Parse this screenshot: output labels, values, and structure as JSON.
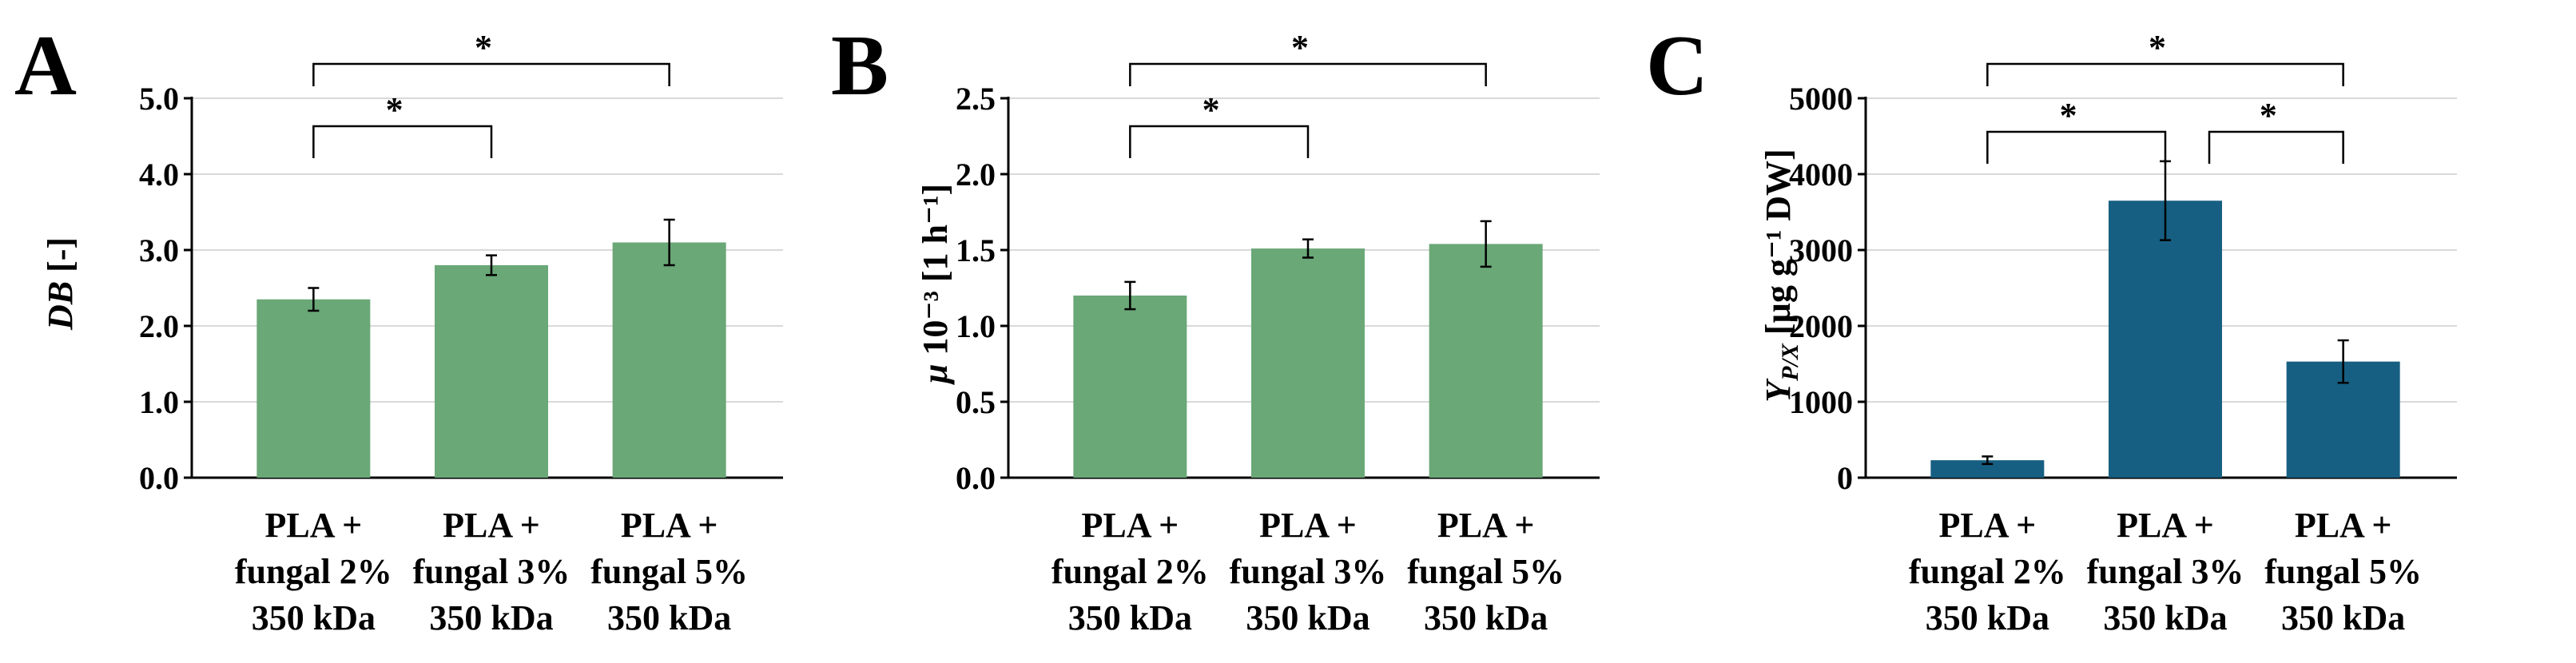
{
  "colors": {
    "green": "#6aa877",
    "blue": "#175f82",
    "axis": "#000000",
    "grid": "#d9d9d9"
  },
  "chart_data": [
    {
      "type": "bar",
      "panel": "A",
      "categories": [
        [
          "PLA +",
          "fungal 2%",
          "350 kDa"
        ],
        [
          "PLA +",
          "fungal 3%",
          "350 kDa"
        ],
        [
          "PLA +",
          "fungal 5%",
          "350 kDa"
        ]
      ],
      "values": [
        2.35,
        2.8,
        3.1
      ],
      "errors": [
        0.15,
        0.13,
        0.3
      ],
      "ylabel_main": "DB",
      "ylabel_rest": " [-]",
      "ylim": [
        0,
        5
      ],
      "yticks": [
        "0.0",
        "1.0",
        "2.0",
        "3.0",
        "4.0",
        "5.0"
      ],
      "grid": true,
      "color": "#6aa877",
      "significance": [
        {
          "from": 0,
          "to": 1,
          "label": "*",
          "level": 1
        },
        {
          "from": 0,
          "to": 2,
          "label": "*",
          "level": 2
        }
      ]
    },
    {
      "type": "bar",
      "panel": "B",
      "categories": [
        [
          "PLA +",
          "fungal 2%",
          "350 kDa"
        ],
        [
          "PLA +",
          "fungal 3%",
          "350 kDa"
        ],
        [
          "PLA +",
          "fungal 5%",
          "350 kDa"
        ]
      ],
      "values": [
        1.2,
        1.51,
        1.54
      ],
      "errors": [
        0.09,
        0.06,
        0.15
      ],
      "ylabel_main": "μ",
      "ylabel_rest": " 10⁻³ [1 h⁻¹]",
      "ylim": [
        0,
        2.5
      ],
      "yticks": [
        "0.0",
        "0.5",
        "1.0",
        "1.5",
        "2.0",
        "2.5"
      ],
      "grid": true,
      "color": "#6aa877",
      "significance": [
        {
          "from": 0,
          "to": 1,
          "label": "*",
          "level": 1
        },
        {
          "from": 0,
          "to": 2,
          "label": "*",
          "level": 2
        }
      ]
    },
    {
      "type": "bar",
      "panel": "C",
      "categories": [
        [
          "PLA +",
          "fungal 2%",
          "350 kDa"
        ],
        [
          "PLA +",
          "fungal 3%",
          "350 kDa"
        ],
        [
          "PLA +",
          "fungal 5%",
          "350 kDa"
        ]
      ],
      "values": [
        230,
        3650,
        1530
      ],
      "errors": [
        50,
        520,
        280
      ],
      "ylabel_main": "Y",
      "ylabel_sub": "P/X",
      "ylabel_rest": " [µg g⁻¹ DW]",
      "ylim": [
        0,
        5000
      ],
      "yticks": [
        "0",
        "1000",
        "2000",
        "3000",
        "4000",
        "5000"
      ],
      "grid": true,
      "color": "#175f82",
      "significance": [
        {
          "from": 0,
          "to": 1,
          "label": "*",
          "level": 1
        },
        {
          "from": 1,
          "to": 2,
          "label": "*",
          "level": 1
        },
        {
          "from": 0,
          "to": 2,
          "label": "*",
          "level": 2
        }
      ]
    }
  ]
}
